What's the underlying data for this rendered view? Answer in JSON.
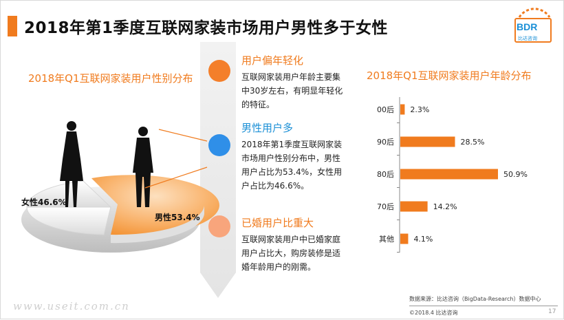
{
  "header": {
    "title": "2018年第1季度互联网家装市场用户男性多于女性"
  },
  "logo": {
    "mark": "BDR",
    "sub": "比达咨询"
  },
  "left_chart": {
    "title": "2018年Q1互联网家装用户性别分布",
    "labels": {
      "female": "女性46.6%",
      "male": "男性53.4%"
    }
  },
  "points": [
    {
      "heading": "用户偏年轻化",
      "text": "互联网家装用户年龄主要集中30岁左右，有明显年轻化的特征。",
      "color": "#f47f2a"
    },
    {
      "heading": "男性用户多",
      "text": "2018年第1季度互联网家装市场用户性别分布中，男性用户占比为53.4%，女性用户占比为46.6%。",
      "color": "#2f8fe8"
    },
    {
      "heading": "已婚用户比重大",
      "text": "互联网家装用户中已婚家庭用户占比大，购房装修是适婚年龄用户的刚需。",
      "color": "#f8a57c"
    }
  ],
  "right_chart": {
    "title": "2018年Q1互联网家装用户年龄分布"
  },
  "chart_data": [
    {
      "type": "pie",
      "title": "2018年Q1互联网家装用户性别分布",
      "categories": [
        "女性",
        "男性"
      ],
      "values": [
        46.6,
        53.4
      ],
      "unit": "%"
    },
    {
      "type": "bar",
      "orientation": "horizontal",
      "title": "2018年Q1互联网家装用户年龄分布",
      "categories": [
        "00后",
        "90后",
        "80后",
        "70后",
        "其他"
      ],
      "values": [
        2.3,
        28.5,
        50.9,
        14.2,
        4.1
      ],
      "value_labels": [
        "2.3%",
        "28.5%",
        "50.9%",
        "14.2%",
        "4.1%"
      ],
      "color": "#f07b1e"
    }
  ],
  "footer": {
    "source": "数据来源：比达咨询（BigData-Research）数据中心",
    "copyright": "©2018.4  比达咨询",
    "page": "17",
    "watermark": "www.useit.com.cn"
  }
}
